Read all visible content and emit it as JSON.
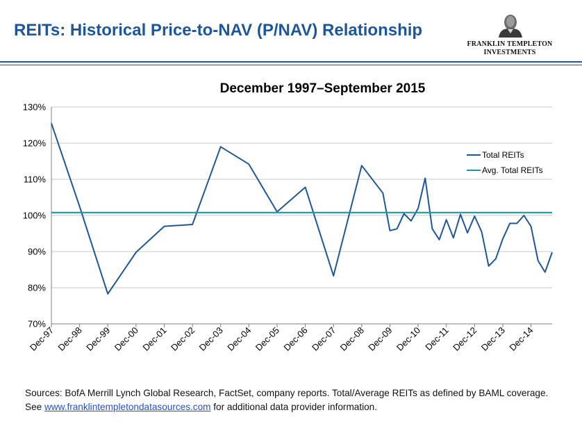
{
  "header": {
    "title": "REITs: Historical Price-to-NAV (P/NAV) Relationship",
    "logo_line1": "FRANKLIN TEMPLETON",
    "logo_line2": "INVESTMENTS"
  },
  "colors": {
    "title": "#1d5799",
    "series_total": "#1d5799",
    "series_avg": "#1a9aa6",
    "grid": "#c8c8c8",
    "link": "#1f4fd6"
  },
  "footer": {
    "sources_text": "Sources: BofA Merrill Lynch Global Research, FactSet, company reports. Total/Average REITs as defined by BAML coverage.",
    "see_prefix": "See ",
    "link_text": "www.franklintempletondatasources.com",
    "see_suffix": " for additional data provider information."
  },
  "chart_data": {
    "type": "line",
    "title": "December 1997–September 2015",
    "xlabel": "",
    "ylabel": "",
    "ylim": [
      70,
      130
    ],
    "y_ticks": [
      70,
      80,
      90,
      100,
      110,
      120,
      130
    ],
    "y_tick_labels": [
      "70%",
      "80%",
      "90%",
      "100%",
      "110%",
      "120%",
      "130%"
    ],
    "x_range": [
      "1997-12",
      "2015-09"
    ],
    "x_tick_labels": [
      "Dec-97",
      "Dec-98",
      "Dec-99",
      "Dec-00",
      "Dec-01",
      "Dec-02",
      "Dec-03",
      "Dec-04",
      "Dec-05",
      "Dec-06",
      "Dec-07",
      "Dec-08",
      "Dec-09",
      "Dec-10",
      "Dec-11",
      "Dec-12",
      "Dec-13",
      "Dec-14"
    ],
    "x_tick_dates": [
      "1997-12",
      "1998-12",
      "1999-12",
      "2000-12",
      "2001-12",
      "2002-12",
      "2003-12",
      "2004-12",
      "2005-12",
      "2006-12",
      "2007-12",
      "2008-12",
      "2009-12",
      "2010-12",
      "2011-12",
      "2012-12",
      "2013-12",
      "2014-12"
    ],
    "grid": true,
    "legend_position": "right",
    "series": [
      {
        "name": "Total REITs",
        "color": "#1d5799",
        "points": [
          [
            "1997-12",
            125.5
          ],
          [
            "1998-12",
            102.5
          ],
          [
            "1999-12",
            78.3
          ],
          [
            "2000-12",
            89.8
          ],
          [
            "2001-12",
            97.0
          ],
          [
            "2002-12",
            97.5
          ],
          [
            "2003-12",
            119.0
          ],
          [
            "2004-12",
            114.2
          ],
          [
            "2005-12",
            101.0
          ],
          [
            "2006-12",
            107.8
          ],
          [
            "2007-12",
            83.3
          ],
          [
            "2008-12",
            113.8
          ],
          [
            "2009-09",
            106.2
          ],
          [
            "2009-12",
            95.8
          ],
          [
            "2010-03",
            96.3
          ],
          [
            "2010-06",
            100.5
          ],
          [
            "2010-09",
            98.5
          ],
          [
            "2010-12",
            102.0
          ],
          [
            "2011-03",
            110.3
          ],
          [
            "2011-06",
            96.3
          ],
          [
            "2011-09",
            93.3
          ],
          [
            "2011-12",
            98.8
          ],
          [
            "2012-03",
            93.8
          ],
          [
            "2012-06",
            100.3
          ],
          [
            "2012-09",
            95.2
          ],
          [
            "2012-12",
            99.8
          ],
          [
            "2013-03",
            95.5
          ],
          [
            "2013-06",
            86.0
          ],
          [
            "2013-09",
            88.0
          ],
          [
            "2013-12",
            93.5
          ],
          [
            "2014-03",
            97.8
          ],
          [
            "2014-06",
            97.8
          ],
          [
            "2014-09",
            100.0
          ],
          [
            "2014-12",
            97.0
          ],
          [
            "2015-03",
            87.5
          ],
          [
            "2015-06",
            84.3
          ],
          [
            "2015-09",
            89.8
          ]
        ]
      },
      {
        "name": "Avg. Total REITs",
        "color": "#1a9aa6",
        "points": [
          [
            "1997-12",
            100.8
          ],
          [
            "2015-09",
            100.8
          ]
        ]
      }
    ]
  }
}
